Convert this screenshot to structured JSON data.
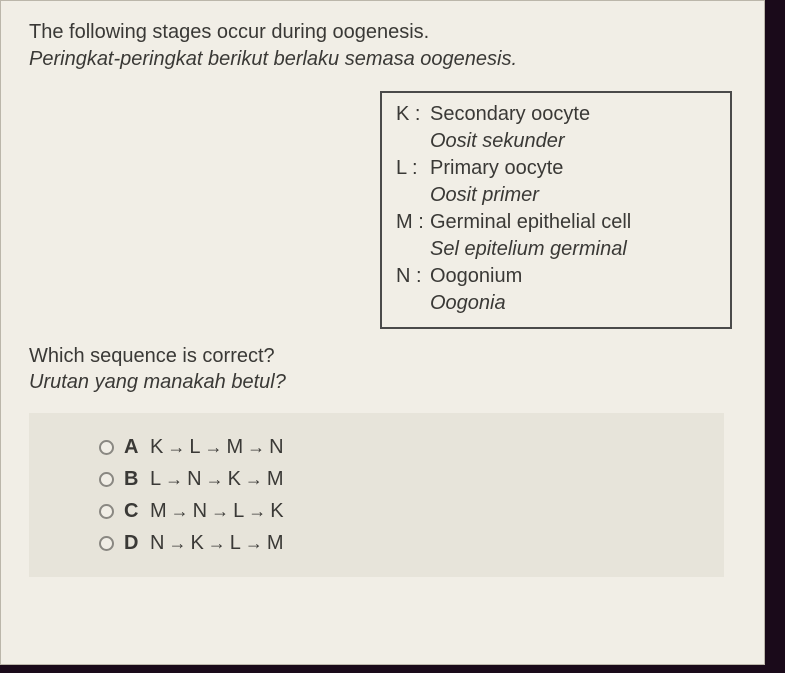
{
  "intro": {
    "en": "The following stages occur during oogenesis.",
    "ms": "Peringkat-peringkat berikut berlaku semasa oogenesis."
  },
  "legend": {
    "items": [
      {
        "key": "K :",
        "en": "Secondary oocyte",
        "ms": "Oosit sekunder"
      },
      {
        "key": "L :",
        "en": "Primary oocyte",
        "ms": "Oosit primer"
      },
      {
        "key": "M :",
        "en": "Germinal epithelial cell",
        "ms": "Sel epitelium germinal"
      },
      {
        "key": "N :",
        "en": "Oogonium",
        "ms": "Oogonia"
      }
    ]
  },
  "question": {
    "en": "Which sequence is correct?",
    "ms": "Urutan yang manakah betul?"
  },
  "arrow": "→",
  "options": [
    {
      "letter": "A",
      "seq": [
        "K",
        "L",
        "M",
        "N"
      ]
    },
    {
      "letter": "B",
      "seq": [
        "L",
        "N",
        "K",
        "M"
      ]
    },
    {
      "letter": "C",
      "seq": [
        "M",
        "N",
        "L",
        "K"
      ]
    },
    {
      "letter": "D",
      "seq": [
        "N",
        "K",
        "L",
        "M"
      ]
    }
  ],
  "colors": {
    "page_bg": "#f1eee6",
    "options_bg": "#e7e4da",
    "text": "#3a3936",
    "border": "#4a4a4a",
    "radio_border": "#8a8882"
  }
}
